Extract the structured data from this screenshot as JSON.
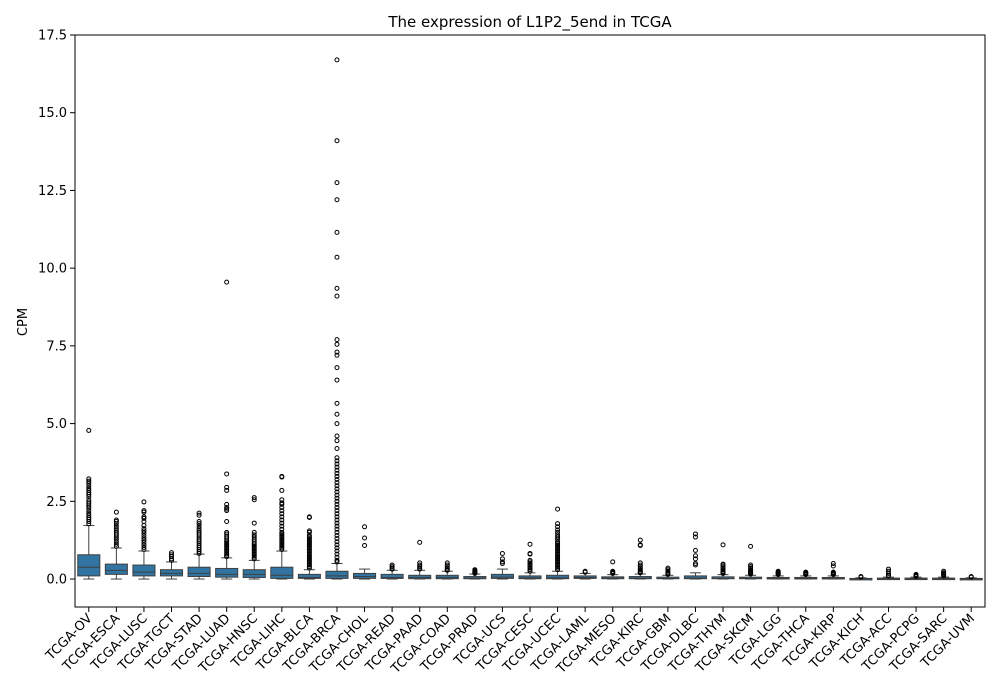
{
  "chart_data": {
    "type": "box",
    "title": "The expression of L1P2_5end in TCGA",
    "xlabel": "",
    "ylabel": "CPM",
    "ylim": [
      -0.9,
      17.5
    ],
    "yticks": [
      "0.0",
      "2.5",
      "5.0",
      "7.5",
      "10.0",
      "12.5",
      "15.0",
      "17.5"
    ],
    "box_color": "#3274a1",
    "categories": [
      "TCGA-OV",
      "TCGA-ESCA",
      "TCGA-LUSC",
      "TCGA-TGCT",
      "TCGA-STAD",
      "TCGA-LUAD",
      "TCGA-HNSC",
      "TCGA-LIHC",
      "TCGA-BLCA",
      "TCGA-BRCA",
      "TCGA-CHOL",
      "TCGA-READ",
      "TCGA-PAAD",
      "TCGA-COAD",
      "TCGA-PRAD",
      "TCGA-UCS",
      "TCGA-CESC",
      "TCGA-UCEC",
      "TCGA-LAML",
      "TCGA-MESO",
      "TCGA-KIRC",
      "TCGA-GBM",
      "TCGA-DLBC",
      "TCGA-THYM",
      "TCGA-SKCM",
      "TCGA-LGG",
      "TCGA-THCA",
      "TCGA-KIRP",
      "TCGA-KICH",
      "TCGA-ACC",
      "TCGA-PCPG",
      "TCGA-SARC",
      "TCGA-UVM"
    ],
    "boxes": [
      {
        "whisker_low": 0.0,
        "q1": 0.1,
        "median": 0.38,
        "q3": 0.78,
        "whisker_high": 1.72,
        "outliers": [
          4.78,
          3.22,
          3.15,
          3.08,
          3.0,
          2.92,
          2.85,
          2.78,
          2.72,
          2.65,
          2.55,
          2.48,
          2.42,
          2.35,
          2.28,
          2.2,
          2.12,
          2.05,
          1.98,
          1.92,
          1.85,
          1.78
        ]
      },
      {
        "whisker_low": 0.0,
        "q1": 0.15,
        "median": 0.28,
        "q3": 0.48,
        "whisker_high": 1.0,
        "outliers": [
          2.15,
          1.9,
          1.85,
          1.78,
          1.7,
          1.62,
          1.55,
          1.48,
          1.42,
          1.35,
          1.28,
          1.2,
          1.12,
          1.05
        ]
      },
      {
        "whisker_low": 0.0,
        "q1": 0.1,
        "median": 0.22,
        "q3": 0.45,
        "whisker_high": 0.9,
        "outliers": [
          2.48,
          2.2,
          2.15,
          2.0,
          1.95,
          1.85,
          1.72,
          1.62,
          1.55,
          1.48,
          1.4,
          1.32,
          1.25,
          1.18,
          1.1,
          1.02,
          0.95
        ]
      },
      {
        "whisker_low": 0.0,
        "q1": 0.1,
        "median": 0.18,
        "q3": 0.3,
        "whisker_high": 0.55,
        "outliers": [
          0.85,
          0.78,
          0.72,
          0.65,
          0.6
        ]
      },
      {
        "whisker_low": 0.0,
        "q1": 0.08,
        "median": 0.18,
        "q3": 0.38,
        "whisker_high": 0.8,
        "outliers": [
          2.12,
          2.05,
          1.85,
          1.78,
          1.7,
          1.62,
          1.55,
          1.48,
          1.42,
          1.35,
          1.28,
          1.22,
          1.15,
          1.08,
          1.02,
          0.95,
          0.88,
          0.82
        ]
      },
      {
        "whisker_low": 0.0,
        "q1": 0.06,
        "median": 0.15,
        "q3": 0.34,
        "whisker_high": 0.68,
        "outliers": [
          9.55,
          3.38,
          2.95,
          2.85,
          2.4,
          2.3,
          2.25,
          2.2,
          1.85,
          1.5,
          1.45,
          1.38,
          1.32,
          1.25,
          1.2,
          1.15,
          1.1,
          1.05,
          1.0,
          0.95,
          0.9,
          0.85,
          0.8,
          0.75,
          0.72
        ]
      },
      {
        "whisker_low": 0.0,
        "q1": 0.05,
        "median": 0.15,
        "q3": 0.3,
        "whisker_high": 0.6,
        "outliers": [
          2.62,
          2.55,
          1.8,
          1.5,
          1.42,
          1.35,
          1.28,
          1.22,
          1.15,
          1.1,
          1.05,
          1.0,
          0.95,
          0.9,
          0.85,
          0.8,
          0.75,
          0.7,
          0.65
        ]
      },
      {
        "whisker_low": 0.0,
        "q1": 0.02,
        "median": 0.12,
        "q3": 0.38,
        "whisker_high": 0.9,
        "outliers": [
          3.3,
          3.28,
          2.85,
          2.55,
          2.45,
          2.4,
          2.3,
          2.2,
          2.1,
          2.0,
          1.9,
          1.8,
          1.7,
          1.6,
          1.5,
          1.45,
          1.4,
          1.35,
          1.3,
          1.25,
          1.2,
          1.15,
          1.1,
          1.05,
          1.0,
          0.95
        ]
      },
      {
        "whisker_low": 0.0,
        "q1": 0.02,
        "median": 0.05,
        "q3": 0.15,
        "whisker_high": 0.3,
        "outliers": [
          2.0,
          1.98,
          1.55,
          1.5,
          1.4,
          1.35,
          1.3,
          1.25,
          1.2,
          1.15,
          1.1,
          1.05,
          1.0,
          0.95,
          0.9,
          0.85,
          0.8,
          0.75,
          0.7,
          0.65,
          0.6,
          0.55,
          0.5,
          0.45,
          0.4,
          0.35
        ]
      },
      {
        "whisker_low": 0.0,
        "q1": 0.02,
        "median": 0.1,
        "q3": 0.25,
        "whisker_high": 0.5,
        "outliers": [
          16.7,
          14.1,
          12.75,
          12.2,
          11.15,
          10.35,
          9.35,
          9.1,
          7.7,
          7.55,
          7.3,
          7.2,
          6.8,
          6.4,
          5.65,
          5.3,
          5.0,
          4.6,
          4.45,
          4.2,
          3.9,
          3.8,
          3.7,
          3.6,
          3.5,
          3.4,
          3.3,
          3.2,
          3.1,
          3.0,
          2.9,
          2.8,
          2.7,
          2.6,
          2.5,
          2.4,
          2.3,
          2.2,
          2.1,
          2.0,
          1.9,
          1.8,
          1.7,
          1.6,
          1.5,
          1.4,
          1.3,
          1.2,
          1.1,
          1.0,
          0.9,
          0.8,
          0.7,
          0.6,
          0.55
        ]
      },
      {
        "whisker_low": 0.0,
        "q1": 0.02,
        "median": 0.08,
        "q3": 0.18,
        "whisker_high": 0.32,
        "outliers": [
          1.68,
          1.32,
          1.08
        ]
      },
      {
        "whisker_low": 0.0,
        "q1": 0.02,
        "median": 0.05,
        "q3": 0.15,
        "whisker_high": 0.28,
        "outliers": [
          0.45,
          0.4,
          0.35,
          0.32
        ]
      },
      {
        "whisker_low": 0.0,
        "q1": 0.01,
        "median": 0.05,
        "q3": 0.12,
        "whisker_high": 0.28,
        "outliers": [
          1.18,
          0.52,
          0.45,
          0.4,
          0.35,
          0.32
        ]
      },
      {
        "whisker_low": 0.0,
        "q1": 0.01,
        "median": 0.05,
        "q3": 0.12,
        "whisker_high": 0.25,
        "outliers": [
          0.52,
          0.45,
          0.4,
          0.35,
          0.3,
          0.28
        ]
      },
      {
        "whisker_low": 0.0,
        "q1": 0.01,
        "median": 0.03,
        "q3": 0.08,
        "whisker_high": 0.16,
        "outliers": [
          0.3,
          0.27,
          0.24,
          0.22,
          0.2,
          0.18
        ]
      },
      {
        "whisker_low": 0.0,
        "q1": 0.02,
        "median": 0.06,
        "q3": 0.15,
        "whisker_high": 0.32,
        "outliers": [
          0.82,
          0.65,
          0.55,
          0.5
        ]
      },
      {
        "whisker_low": 0.0,
        "q1": 0.01,
        "median": 0.04,
        "q3": 0.1,
        "whisker_high": 0.2,
        "outliers": [
          1.12,
          0.82,
          0.8,
          0.6,
          0.55,
          0.5,
          0.45,
          0.4,
          0.35,
          0.3,
          0.25
        ]
      },
      {
        "whisker_low": 0.0,
        "q1": 0.01,
        "median": 0.04,
        "q3": 0.12,
        "whisker_high": 0.25,
        "outliers": [
          2.25,
          1.78,
          1.68,
          1.58,
          1.5,
          1.42,
          1.35,
          1.28,
          1.2,
          1.15,
          1.1,
          1.05,
          1.0,
          0.95,
          0.9,
          0.85,
          0.8,
          0.75,
          0.7,
          0.65,
          0.6,
          0.55,
          0.5,
          0.45,
          0.4,
          0.35,
          0.3
        ]
      },
      {
        "whisker_low": 0.0,
        "q1": 0.02,
        "median": 0.05,
        "q3": 0.1,
        "whisker_high": 0.18,
        "outliers": [
          0.25,
          0.22
        ]
      },
      {
        "whisker_low": 0.0,
        "q1": 0.01,
        "median": 0.03,
        "q3": 0.07,
        "whisker_high": 0.14,
        "outliers": [
          0.55,
          0.25,
          0.22,
          0.2,
          0.18
        ]
      },
      {
        "whisker_low": 0.0,
        "q1": 0.01,
        "median": 0.03,
        "q3": 0.08,
        "whisker_high": 0.16,
        "outliers": [
          1.25,
          1.1,
          1.08,
          0.52,
          0.45,
          0.4,
          0.35,
          0.3,
          0.25,
          0.22,
          0.2
        ]
      },
      {
        "whisker_low": 0.0,
        "q1": 0.01,
        "median": 0.02,
        "q3": 0.06,
        "whisker_high": 0.12,
        "outliers": [
          0.35,
          0.3,
          0.25,
          0.2,
          0.18,
          0.15
        ]
      },
      {
        "whisker_low": 0.0,
        "q1": 0.01,
        "median": 0.03,
        "q3": 0.1,
        "whisker_high": 0.2,
        "outliers": [
          1.45,
          1.35,
          0.92,
          0.75,
          0.65,
          0.5,
          0.45
        ]
      },
      {
        "whisker_low": 0.0,
        "q1": 0.01,
        "median": 0.02,
        "q3": 0.07,
        "whisker_high": 0.14,
        "outliers": [
          1.1,
          0.48,
          0.45,
          0.4,
          0.35,
          0.3,
          0.25,
          0.22,
          0.2,
          0.18
        ]
      },
      {
        "whisker_low": 0.0,
        "q1": 0.01,
        "median": 0.02,
        "q3": 0.06,
        "whisker_high": 0.12,
        "outliers": [
          1.05,
          0.45,
          0.4,
          0.35,
          0.3,
          0.28,
          0.25,
          0.22,
          0.2,
          0.18,
          0.16
        ]
      },
      {
        "whisker_low": 0.0,
        "q1": 0.01,
        "median": 0.02,
        "q3": 0.05,
        "whisker_high": 0.1,
        "outliers": [
          0.25,
          0.22,
          0.2,
          0.18,
          0.16,
          0.14
        ]
      },
      {
        "whisker_low": 0.0,
        "q1": 0.01,
        "median": 0.02,
        "q3": 0.05,
        "whisker_high": 0.1,
        "outliers": [
          0.22,
          0.2,
          0.18,
          0.16,
          0.14
        ]
      },
      {
        "whisker_low": 0.0,
        "q1": 0.01,
        "median": 0.02,
        "q3": 0.05,
        "whisker_high": 0.1,
        "outliers": [
          0.5,
          0.42,
          0.22,
          0.2,
          0.18,
          0.16,
          0.14
        ]
      },
      {
        "whisker_low": 0.0,
        "q1": 0.005,
        "median": 0.01,
        "q3": 0.02,
        "whisker_high": 0.04,
        "outliers": [
          0.08,
          0.06
        ]
      },
      {
        "whisker_low": 0.0,
        "q1": 0.005,
        "median": 0.01,
        "q3": 0.03,
        "whisker_high": 0.06,
        "outliers": [
          0.32,
          0.25,
          0.18,
          0.12,
          0.1
        ]
      },
      {
        "whisker_low": 0.0,
        "q1": 0.005,
        "median": 0.01,
        "q3": 0.03,
        "whisker_high": 0.06,
        "outliers": [
          0.15,
          0.12,
          0.1,
          0.08
        ]
      },
      {
        "whisker_low": 0.0,
        "q1": 0.005,
        "median": 0.01,
        "q3": 0.03,
        "whisker_high": 0.06,
        "outliers": [
          0.25,
          0.2,
          0.18,
          0.15,
          0.12,
          0.1
        ]
      },
      {
        "whisker_low": 0.0,
        "q1": 0.0,
        "median": 0.005,
        "q3": 0.02,
        "whisker_high": 0.04,
        "outliers": [
          0.08,
          0.06
        ]
      }
    ]
  }
}
